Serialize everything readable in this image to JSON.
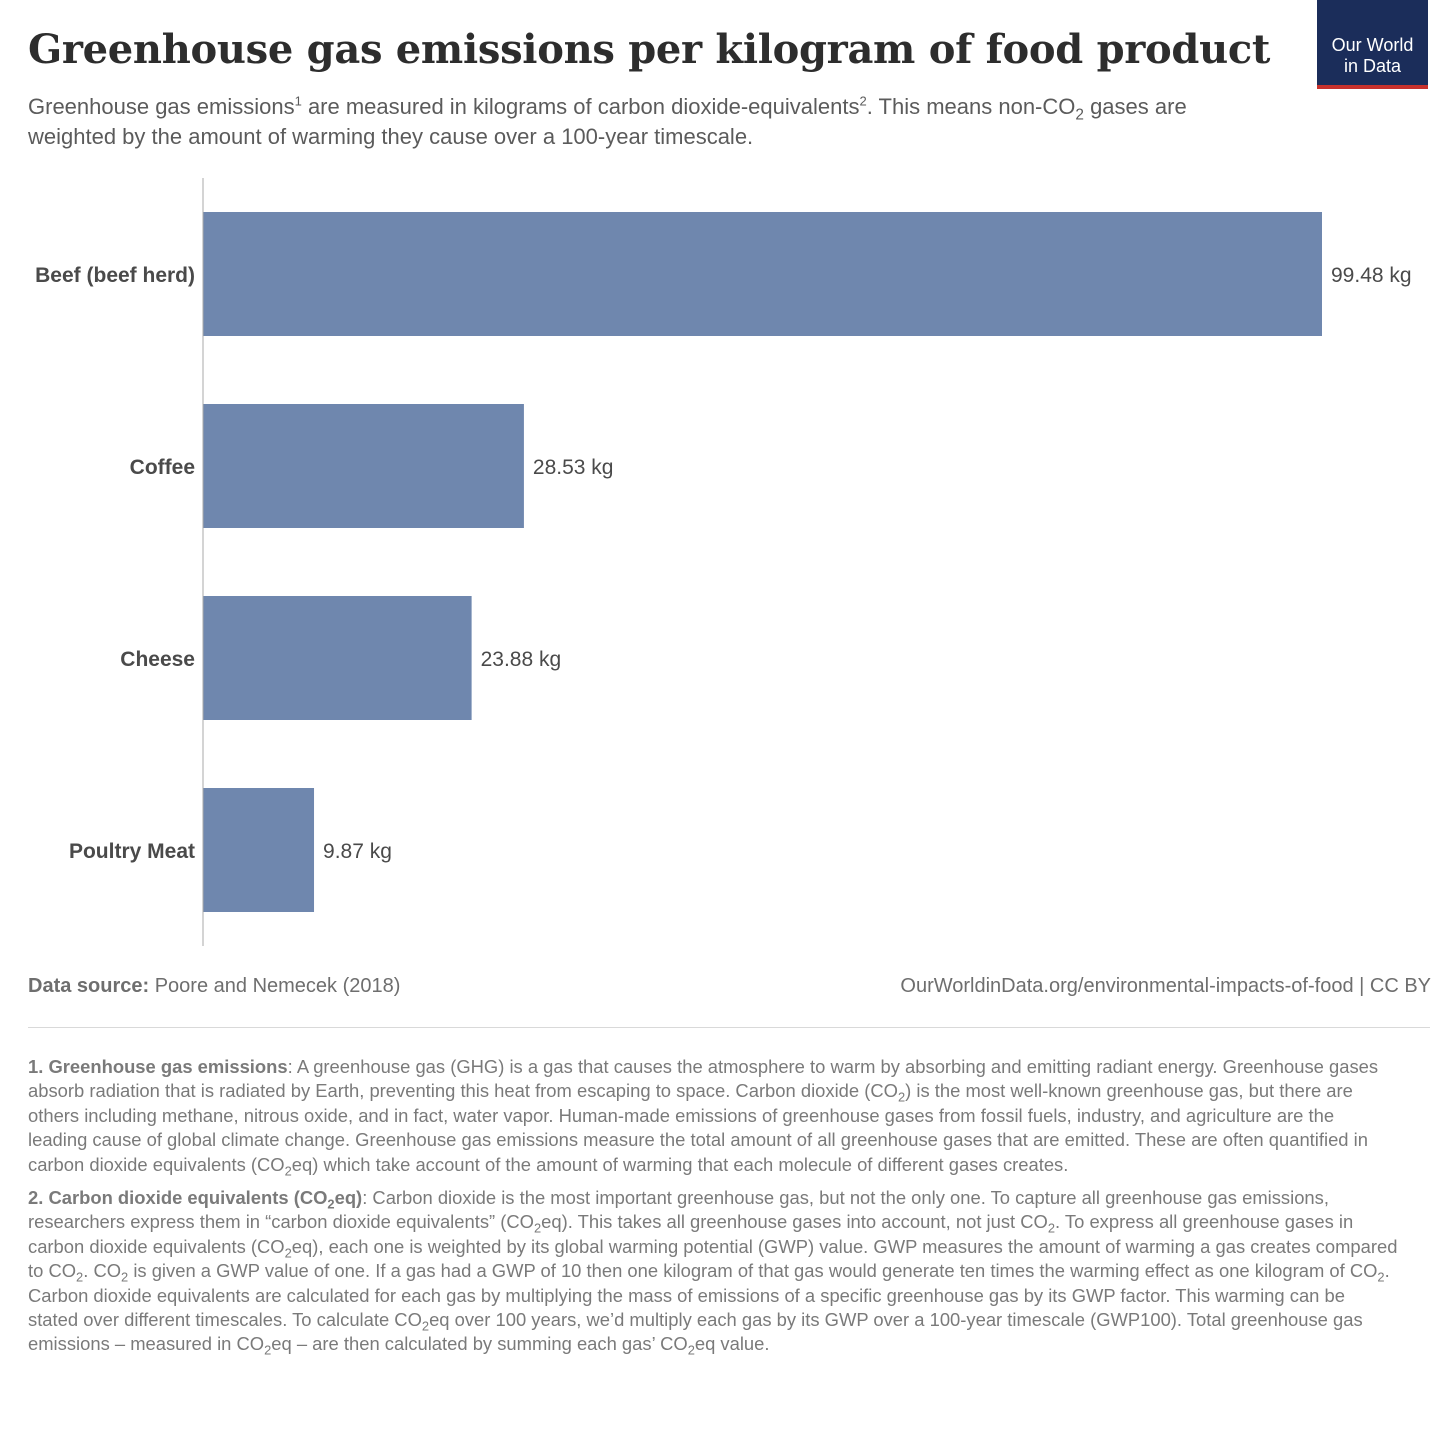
{
  "header": {
    "title": "Greenhouse gas emissions per kilogram of food product",
    "subtitle": {
      "p1": "Greenhouse gas emissions",
      "sup1": "1",
      "p2": " are measured in kilograms of carbon dioxide-equivalents",
      "sup2": "2",
      "p3": ". This means non-CO",
      "sub1": "2",
      "p4": " gases are weighted by the amount of warming they cause over a 100-year timescale."
    },
    "logo_line1": "Our World",
    "logo_line2": "in Data"
  },
  "colors": {
    "bar": "#6f87ae",
    "axis": "#a8a8a8",
    "logo_bg": "#1b2d5a",
    "logo_accent": "#c8312c"
  },
  "chart_data": {
    "type": "bar",
    "orientation": "horizontal",
    "categories": [
      "Beef (beef herd)",
      "Coffee",
      "Cheese",
      "Poultry Meat"
    ],
    "values": [
      99.48,
      28.53,
      23.88,
      9.87
    ],
    "value_labels": [
      "99.48 kg",
      "28.53 kg",
      "23.88 kg",
      "9.87 kg"
    ],
    "unit": "kg",
    "xlim": [
      0,
      99.48
    ],
    "grid": false,
    "legend": "none"
  },
  "footer": {
    "source_label": "Data source:",
    "source_text": " Poore and Nemecek (2018)",
    "url": "OurWorldinData.org/environmental-impacts-of-food | CC BY"
  },
  "notes": {
    "n1": {
      "heading": "1. Greenhouse gas emissions",
      "a": ": A greenhouse gas (GHG) is a gas that causes the atmosphere to warm by absorbing and emitting radiant energy. Greenhouse gases absorb radiation that is radiated by Earth, preventing this heat from escaping to space. Carbon dioxide (CO",
      "s1": "2",
      "b": ") is the most well-known greenhouse gas, but there are others including methane, nitrous oxide, and in fact, water vapor. Human-made emissions of greenhouse gases from fossil fuels, industry, and agriculture are the leading cause of global climate change. Greenhouse gas emissions measure the total amount of all greenhouse gases that are emitted. These are often quantified in carbon dioxide equivalents (CO",
      "s2": "2",
      "c": "eq) which take account of the amount of warming that each molecule of different gases creates."
    },
    "n2": {
      "heading_a": "2. Carbon dioxide equivalents (CO",
      "heading_s": "2",
      "heading_b": "eq)",
      "t1": ": Carbon dioxide is the most important greenhouse gas, but not the only one. To capture all greenhouse gas emissions, researchers express them in “carbon dioxide equivalents” (CO",
      "s1": "2",
      "t2": "eq). This takes all greenhouse gases into account, not just CO",
      "s2": "2",
      "t3": ". To express all greenhouse gases in carbon dioxide equivalents (CO",
      "s3": "2",
      "t4": "eq), each one is weighted by its global warming potential (GWP) value. GWP measures the amount of warming a gas creates compared to CO",
      "s4": "2",
      "t5": ". CO",
      "s5": "2",
      "t6": " is given a GWP value of one. If a gas had a GWP of 10 then one kilogram of that gas would generate ten times the warming effect as one kilogram of CO",
      "s6": "2",
      "t7": ". Carbon dioxide equivalents are calculated for each gas by multiplying the mass of emissions of a specific greenhouse gas by its GWP factor. This warming can be stated over different timescales. To calculate CO",
      "s7": "2",
      "t8": "eq over 100 years, we’d multiply each gas by its GWP over a 100-year timescale (GWP100). Total greenhouse gas emissions – measured in CO",
      "s8": "2",
      "t9": "eq – are then calculated by summing each gas’ CO",
      "s9": "2",
      "t10": "eq value."
    }
  }
}
